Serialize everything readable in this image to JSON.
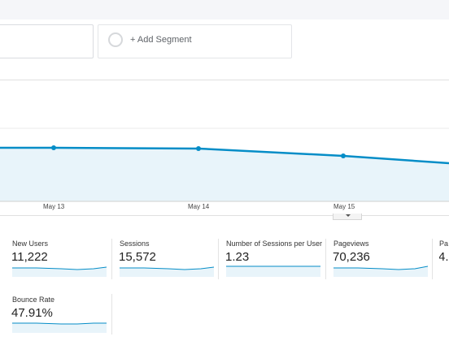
{
  "segments": {
    "add_label": "+ Add Segment"
  },
  "chart": {
    "x_ticks": [
      "May 13",
      "May 14",
      "May 15"
    ],
    "line_color": "#058dc7",
    "fill_color": "#e8f4fa"
  },
  "metrics": [
    {
      "label": "New Users",
      "value": "11,222"
    },
    {
      "label": "Sessions",
      "value": "15,572"
    },
    {
      "label": "Number of Sessions per User",
      "value": "1.23"
    },
    {
      "label": "Pageviews",
      "value": "70,236"
    },
    {
      "label": "Pa",
      "value": "4."
    },
    {
      "label": "Bounce Rate",
      "value": "47.91%"
    }
  ]
}
